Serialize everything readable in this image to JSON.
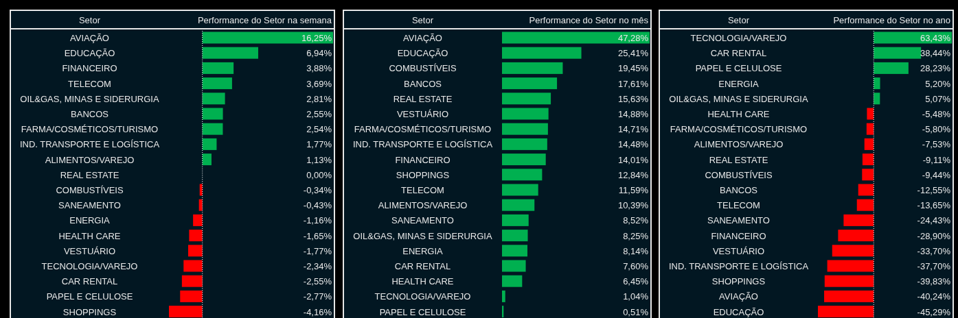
{
  "chart_data": [
    {
      "type": "bar",
      "orientation": "horizontal",
      "title": "Performance do Setor na semana",
      "ylabel": "Setor",
      "ref_lines": [
        {
          "axis": "x",
          "value": 0,
          "color": "#ffffff",
          "line_style": "dotted"
        }
      ],
      "categories": [
        "AVIAÇÃO",
        "EDUCAÇÃO",
        "FINANCEIRO",
        "TELECOM",
        "OIL&GAS, MINAS E SIDERURGIA",
        "BANCOS",
        "FARMA/COSMÉTICOS/TURISMO",
        "IND. TRANSPORTE E LOGÍSTICA",
        "ALIMENTOS/VAREJO",
        "REAL ESTATE",
        "COMBUSTÍVEIS",
        "SANEAMENTO",
        "ENERGIA",
        "HEALTH CARE",
        "VESTUÁRIO",
        "TECNOLOGIA/VAREJO",
        "CAR RENTAL",
        "PAPEL E CELULOSE",
        "SHOPPINGS"
      ],
      "values": [
        16.25,
        6.94,
        3.88,
        3.69,
        2.81,
        2.55,
        2.54,
        1.77,
        1.13,
        0,
        -0.34,
        -0.43,
        -1.16,
        -1.65,
        -1.77,
        -2.34,
        -2.55,
        -2.77,
        -4.16
      ],
      "value_labels": [
        "16,25%",
        "6,94%",
        "3,88%",
        "3,69%",
        "2,81%",
        "2,55%",
        "2,54%",
        "1,77%",
        "1,13%",
        "0,00%",
        "-0,34%",
        "-0,43%",
        "-1,16%",
        "-1,65%",
        "-1,77%",
        "-2,34%",
        "-2,55%",
        "-2,77%",
        "-4,16%"
      ],
      "colors": [
        "#00b050",
        "#00b050",
        "#00b050",
        "#00b050",
        "#00b050",
        "#00b050",
        "#00b050",
        "#00b050",
        "#00b050",
        "#00b050",
        "#ff0000",
        "#ff0000",
        "#ff0000",
        "#ff0000",
        "#ff0000",
        "#ff0000",
        "#ff0000",
        "#ff0000",
        "#ff0000"
      ]
    },
    {
      "type": "bar",
      "orientation": "horizontal",
      "title": "Performance do Setor no mês",
      "ylabel": "Setor",
      "categories": [
        "AVIAÇÃO",
        "EDUCAÇÃO",
        "COMBUSTÍVEIS",
        "BANCOS",
        "REAL ESTATE",
        "VESTUÁRIO",
        "FARMA/COSMÉTICOS/TURISMO",
        "IND. TRANSPORTE E LOGÍSTICA",
        "FINANCEIRO",
        "SHOPPINGS",
        "TELECOM",
        "ALIMENTOS/VAREJO",
        "SANEAMENTO",
        "OIL&GAS, MINAS E SIDERURGIA",
        "ENERGIA",
        "CAR RENTAL",
        "HEALTH CARE",
        "TECNOLOGIA/VAREJO",
        "PAPEL E CELULOSE"
      ],
      "values": [
        47.28,
        25.41,
        19.45,
        17.61,
        15.63,
        14.88,
        14.71,
        14.48,
        14.01,
        12.84,
        11.59,
        10.39,
        8.52,
        8.25,
        8.14,
        7.6,
        6.45,
        1.04,
        0.51
      ],
      "value_labels": [
        "47,28%",
        "25,41%",
        "19,45%",
        "17,61%",
        "15,63%",
        "14,88%",
        "14,71%",
        "14,48%",
        "14,01%",
        "12,84%",
        "11,59%",
        "10,39%",
        "8,52%",
        "8,25%",
        "8,14%",
        "7,60%",
        "6,45%",
        "1,04%",
        "0,51%"
      ],
      "colors": [
        "#00b050",
        "#00b050",
        "#00b050",
        "#00b050",
        "#00b050",
        "#00b050",
        "#00b050",
        "#00b050",
        "#00b050",
        "#00b050",
        "#00b050",
        "#00b050",
        "#00b050",
        "#00b050",
        "#00b050",
        "#00b050",
        "#00b050",
        "#00b050",
        "#00b050"
      ]
    },
    {
      "type": "bar",
      "orientation": "horizontal",
      "title": "Performance do Setor no ano",
      "ylabel": "Setor",
      "ref_lines": [
        {
          "axis": "x",
          "value": 0,
          "color": "#ffffff",
          "line_style": "dotted"
        }
      ],
      "categories": [
        "TECNOLOGIA/VAREJO",
        "CAR RENTAL",
        "PAPEL E CELULOSE",
        "ENERGIA",
        "OIL&GAS, MINAS E SIDERURGIA",
        "HEALTH CARE",
        "FARMA/COSMÉTICOS/TURISMO",
        "ALIMENTOS/VAREJO",
        "REAL ESTATE",
        "COMBUSTÍVEIS",
        "BANCOS",
        "TELECOM",
        "SANEAMENTO",
        "FINANCEIRO",
        "VESTUÁRIO",
        "IND. TRANSPORTE E LOGÍSTICA",
        "SHOPPINGS",
        "AVIAÇÃO",
        "EDUCAÇÃO"
      ],
      "values": [
        63.43,
        38.44,
        28.23,
        5.2,
        5.07,
        -5.48,
        -5.8,
        -7.53,
        -9.11,
        -9.44,
        -12.55,
        -13.65,
        -24.43,
        -28.9,
        -33.7,
        -37.7,
        -39.83,
        -40.24,
        -45.29
      ],
      "value_labels": [
        "63,43%",
        "38,44%",
        "28,23%",
        "5,20%",
        "5,07%",
        "-5,48%",
        "-5,80%",
        "-7,53%",
        "-9,11%",
        "-9,44%",
        "-12,55%",
        "-13,65%",
        "-24,43%",
        "-28,90%",
        "-33,70%",
        "-37,70%",
        "-39,83%",
        "-40,24%",
        "-45,29%"
      ],
      "colors": [
        "#00b050",
        "#00b050",
        "#00b050",
        "#00b050",
        "#00b050",
        "#ff0000",
        "#ff0000",
        "#ff0000",
        "#ff0000",
        "#ff0000",
        "#ff0000",
        "#ff0000",
        "#ff0000",
        "#ff0000",
        "#ff0000",
        "#ff0000",
        "#ff0000",
        "#ff0000",
        "#ff0000"
      ]
    }
  ]
}
